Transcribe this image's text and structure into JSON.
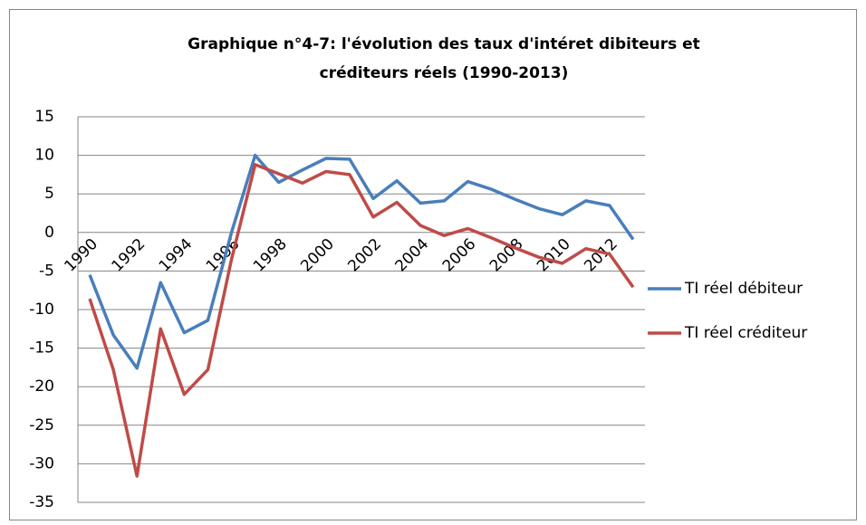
{
  "chart_data": {
    "type": "line",
    "title": [
      "Graphique n°4-7: l'évolution des taux d'intéret dibiteurs et",
      "créditeurs réels (1990-2013)"
    ],
    "categories": [
      "1990",
      null,
      "1992",
      null,
      "1994",
      null,
      "1996",
      null,
      "1998",
      null,
      "2000",
      null,
      "2002",
      null,
      "2004",
      null,
      "2006",
      null,
      "2008",
      null,
      "2010",
      null,
      "2012",
      null
    ],
    "series": [
      {
        "name": "TI réel débiteur",
        "color": "#4a7ebb",
        "values": [
          -5.5,
          -13.3,
          -17.6,
          -6.5,
          -13,
          -11.4,
          0,
          10,
          6.5,
          8.1,
          9.6,
          9.5,
          4.4,
          6.7,
          3.8,
          4.1,
          6.6,
          5.6,
          4.3,
          3.1,
          2.3,
          4.1,
          3.5,
          -0.9
        ]
      },
      {
        "name": "TI réel créditeur",
        "color": "#be4b48",
        "values": [
          -8.6,
          -17.8,
          -31.6,
          -12.5,
          -21,
          -17.8,
          -3.5,
          8.8,
          7.6,
          6.4,
          7.9,
          7.5,
          2,
          3.9,
          0.9,
          -0.4,
          0.5,
          -0.7,
          -2,
          -3.2,
          -4,
          -2.1,
          -2.8,
          -7.1
        ]
      }
    ],
    "ylim": [
      -35,
      15
    ],
    "yticks": [
      -35,
      -30,
      -25,
      -20,
      -15,
      -10,
      -5,
      0,
      5,
      10,
      15
    ],
    "grid": true,
    "legend": "right"
  }
}
